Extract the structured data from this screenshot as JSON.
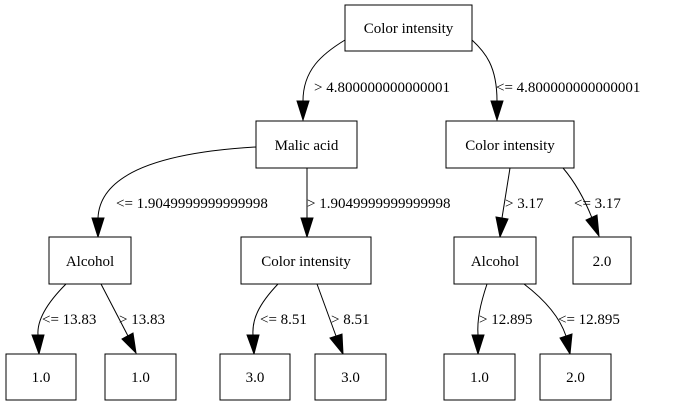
{
  "nodes": {
    "root": "Color intensity",
    "n1": "Malic acid",
    "n2": "Color intensity",
    "n3": "Alcohol",
    "n4": "Color intensity",
    "n5": "Alcohol",
    "n6": "2.0",
    "l1": "1.0",
    "l2": "1.0",
    "l3": "3.0",
    "l4": "3.0",
    "l5": "1.0",
    "l6": "2.0"
  },
  "edges": {
    "root_n1": "> 4.800000000000001",
    "root_n2": "<= 4.800000000000001",
    "n1_n3": "<= 1.9049999999999998",
    "n1_n4": "> 1.9049999999999998",
    "n2_n5": "> 3.17",
    "n2_n6": "<= 3.17",
    "n3_l1": "<= 13.83",
    "n3_l2": "> 13.83",
    "n4_l3": "<= 8.51",
    "n4_l4": "> 8.51",
    "n5_l5": "> 12.895",
    "n5_l6": "<= 12.895"
  }
}
